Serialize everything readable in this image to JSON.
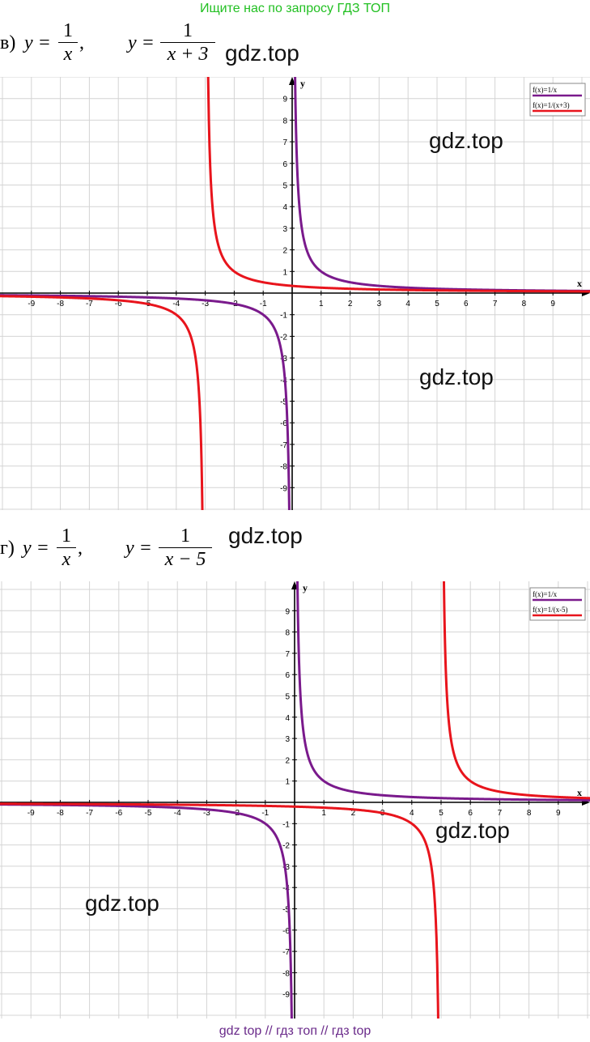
{
  "header": {
    "text": "Ищите нас по запросу ГДЗ ТОП"
  },
  "footer": {
    "text": "gdz top  //  гдз топ  //  гдз top"
  },
  "watermark": "gdz.top",
  "sections": [
    {
      "label": "в)",
      "eq1": {
        "lhs": "y =",
        "num": "1",
        "den": "x",
        "tail": ","
      },
      "eq2": {
        "lhs": "y =",
        "num": "1",
        "den": "x + 3"
      },
      "legend": [
        "f(x)=1/x",
        "f(x)=1/(x+3)"
      ]
    },
    {
      "label": "г)",
      "eq1": {
        "lhs": "y =",
        "num": "1",
        "den": "x",
        "tail": ","
      },
      "eq2": {
        "lhs": "y =",
        "num": "1",
        "den": "x − 5"
      },
      "legend": [
        "f(x)=1/x",
        "f(x)=1/(x-5)"
      ]
    }
  ],
  "colors": {
    "purple": "#7a1a8c",
    "red": "#e8141c",
    "grid": "#d4d4d4",
    "watermark_green": "#22c022"
  },
  "chart_data": [
    {
      "type": "line",
      "xlabel": "x",
      "ylabel": "y",
      "xlim": [
        -10,
        10
      ],
      "ylim": [
        -10,
        10
      ],
      "xticks": [
        -9,
        -8,
        -7,
        -6,
        -5,
        -4,
        -3,
        -2,
        -1,
        1,
        2,
        3,
        4,
        5,
        6,
        7,
        8,
        9
      ],
      "yticks": [
        -9,
        -8,
        -7,
        -6,
        -5,
        -4,
        -3,
        -2,
        -1,
        1,
        2,
        3,
        4,
        5,
        6,
        7,
        8,
        9
      ],
      "grid": true,
      "legend_position": "top-right",
      "series": [
        {
          "name": "f(x)=1/x",
          "function": "1/x",
          "asymptote_x": 0,
          "color": "#7a1a8c"
        },
        {
          "name": "f(x)=1/(x+3)",
          "function": "1/(x+3)",
          "asymptote_x": -3,
          "color": "#e8141c"
        }
      ]
    },
    {
      "type": "line",
      "xlabel": "x",
      "ylabel": "y",
      "xlim": [
        -10,
        10
      ],
      "ylim": [
        -10,
        10
      ],
      "xticks": [
        -9,
        -8,
        -7,
        -6,
        -5,
        -4,
        -3,
        -2,
        -1,
        1,
        2,
        3,
        4,
        5,
        6,
        7,
        8,
        9
      ],
      "yticks": [
        -9,
        -8,
        -7,
        -6,
        -5,
        -4,
        -3,
        -2,
        -1,
        1,
        2,
        3,
        4,
        5,
        6,
        7,
        8,
        9
      ],
      "grid": true,
      "legend_position": "top-right",
      "series": [
        {
          "name": "f(x)=1/x",
          "function": "1/x",
          "asymptote_x": 0,
          "color": "#7a1a8c"
        },
        {
          "name": "f(x)=1/(x-5)",
          "function": "1/(x-5)",
          "asymptote_x": 5,
          "color": "#e8141c"
        }
      ]
    }
  ]
}
